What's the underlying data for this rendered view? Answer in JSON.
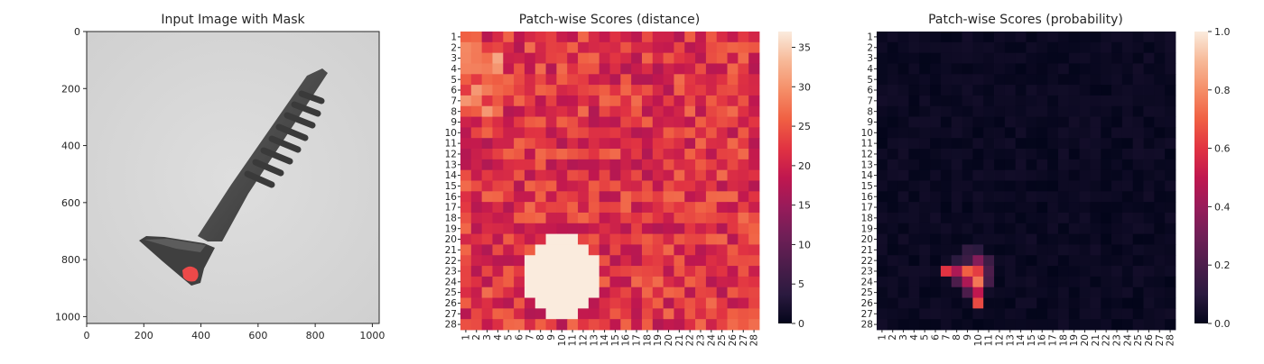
{
  "panels": {
    "image": {
      "title": "Input Image with Mask"
    },
    "distance": {
      "title": "Patch-wise Scores (distance)"
    },
    "probability": {
      "title": "Patch-wise Scores (probability)"
    }
  },
  "chart_data": [
    {
      "type": "image",
      "title": "Input Image with Mask",
      "xlim": [
        0,
        1024
      ],
      "ylim": [
        1024,
        0
      ],
      "xticks": [
        0,
        200,
        400,
        600,
        800,
        1000
      ],
      "yticks": [
        0,
        200,
        400,
        600,
        800,
        1000
      ],
      "grid": false
    },
    {
      "type": "heatmap",
      "title": "Patch-wise Scores (distance)",
      "rows": 28,
      "cols": 28,
      "row_labels": [
        "1",
        "2",
        "3",
        "4",
        "5",
        "6",
        "7",
        "8",
        "9",
        "10",
        "11",
        "12",
        "13",
        "14",
        "15",
        "16",
        "17",
        "18",
        "19",
        "20",
        "21",
        "22",
        "23",
        "24",
        "25",
        "26",
        "27",
        "28"
      ],
      "col_labels": [
        "1",
        "2",
        "3",
        "4",
        "5",
        "6",
        "7",
        "8",
        "9",
        "10",
        "11",
        "12",
        "13",
        "14",
        "15",
        "16",
        "17",
        "18",
        "19",
        "20",
        "21",
        "22",
        "23",
        "24",
        "25",
        "26",
        "27",
        "28"
      ],
      "colorbar": {
        "min": 0,
        "max": 37,
        "ticks": [
          0,
          5,
          10,
          15,
          20,
          25,
          30,
          35
        ]
      },
      "hotspot": {
        "rows": [
          20,
          27
        ],
        "cols": [
          7,
          13
        ],
        "peak_value": 37
      },
      "background_value": 22
    },
    {
      "type": "heatmap",
      "title": "Patch-wise Scores (probability)",
      "rows": 28,
      "cols": 28,
      "row_labels": [
        "1",
        "2",
        "3",
        "4",
        "5",
        "6",
        "7",
        "8",
        "9",
        "10",
        "11",
        "12",
        "13",
        "14",
        "15",
        "16",
        "17",
        "18",
        "19",
        "20",
        "21",
        "22",
        "23",
        "24",
        "25",
        "26",
        "27",
        "28"
      ],
      "col_labels": [
        "1",
        "2",
        "3",
        "4",
        "5",
        "6",
        "7",
        "8",
        "9",
        "10",
        "11",
        "12",
        "13",
        "14",
        "15",
        "16",
        "17",
        "18",
        "19",
        "20",
        "21",
        "22",
        "23",
        "24",
        "25",
        "26",
        "27",
        "28"
      ],
      "colorbar": {
        "min": 0.0,
        "max": 1.0,
        "ticks": [
          "0.0",
          "0.2",
          "0.4",
          "0.6",
          "0.8",
          "1.0"
        ]
      },
      "hot_cells": [
        {
          "row": 23,
          "col": 7,
          "value": 0.6
        },
        {
          "row": 23,
          "col": 8,
          "value": 0.45
        },
        {
          "row": 23,
          "col": 9,
          "value": 0.7
        },
        {
          "row": 23,
          "col": 10,
          "value": 0.62
        },
        {
          "row": 22,
          "col": 10,
          "value": 0.35
        },
        {
          "row": 24,
          "col": 9,
          "value": 0.45
        },
        {
          "row": 24,
          "col": 10,
          "value": 0.75
        },
        {
          "row": 25,
          "col": 10,
          "value": 0.5
        },
        {
          "row": 26,
          "col": 10,
          "value": 0.65
        },
        {
          "row": 24,
          "col": 8,
          "value": 0.2
        },
        {
          "row": 22,
          "col": 9,
          "value": 0.15
        },
        {
          "row": 21,
          "col": 9,
          "value": 0.12
        },
        {
          "row": 21,
          "col": 10,
          "value": 0.1
        },
        {
          "row": 22,
          "col": 11,
          "value": 0.15
        },
        {
          "row": 23,
          "col": 11,
          "value": 0.2
        },
        {
          "row": 24,
          "col": 11,
          "value": 0.18
        },
        {
          "row": 25,
          "col": 9,
          "value": 0.2
        },
        {
          "row": 22,
          "col": 8,
          "value": 0.1
        }
      ]
    }
  ]
}
